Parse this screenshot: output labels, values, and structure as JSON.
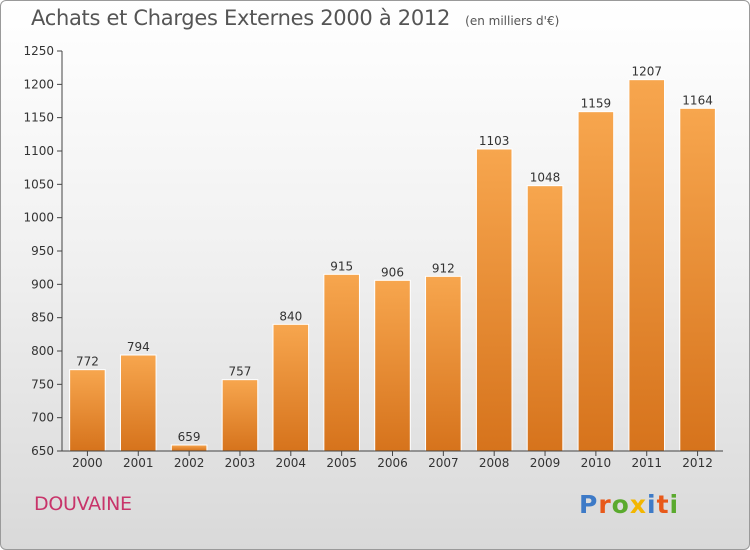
{
  "header": {
    "title": "Achats et Charges Externes 2000 à 2012",
    "unit": "(en milliers d'€)"
  },
  "footer": {
    "location": "DOUVAINE",
    "logo_text": "Proxiti",
    "logo_colors": [
      "#3d7ac7",
      "#e8591a",
      "#5aaa2e",
      "#f3b600",
      "#3d7ac7",
      "#e8591a",
      "#5aaa2e"
    ]
  },
  "colors": {
    "bar_light": "#f7a64e",
    "bar_dark": "#d6731c",
    "axis": "#444444",
    "grid": "#dddddd"
  },
  "chart_data": {
    "type": "bar",
    "title": "Achats et Charges Externes 2000 à 2012",
    "subtitle": "(en milliers d'€)",
    "categories": [
      "2000",
      "2001",
      "2002",
      "2003",
      "2004",
      "2005",
      "2006",
      "2007",
      "2008",
      "2009",
      "2010",
      "2011",
      "2012"
    ],
    "values": [
      772,
      794,
      659,
      757,
      840,
      915,
      906,
      912,
      1103,
      1048,
      1159,
      1207,
      1164
    ],
    "ylim": [
      650,
      1250
    ],
    "yticks": [
      650,
      700,
      750,
      800,
      850,
      900,
      950,
      1000,
      1050,
      1100,
      1150,
      1200,
      1250
    ],
    "data_labels": true,
    "grid": false,
    "legend": "none"
  }
}
